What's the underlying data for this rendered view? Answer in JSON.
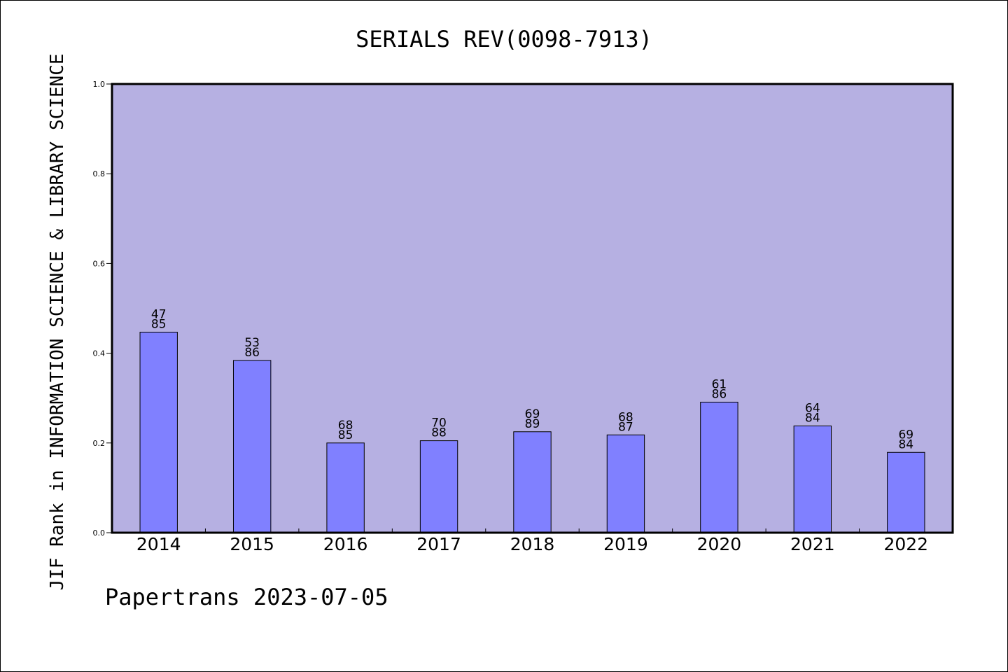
{
  "chart_data": {
    "type": "bar",
    "title": "SERIALS REV(0098-7913)",
    "ylabel": "JIF Rank in INFORMATION SCIENCE & LIBRARY SCIENCE",
    "xlabel": "",
    "ylim": [
      0,
      1.0
    ],
    "yticks": [
      "0.0",
      "0.2",
      "0.4",
      "0.6",
      "0.8",
      "1.0"
    ],
    "categories": [
      "2014",
      "2015",
      "2016",
      "2017",
      "2018",
      "2019",
      "2020",
      "2021",
      "2022"
    ],
    "values": [
      0.447,
      0.384,
      0.2,
      0.205,
      0.225,
      0.218,
      0.291,
      0.238,
      0.179
    ],
    "labels_top": [
      "47",
      "53",
      "68",
      "70",
      "69",
      "68",
      "61",
      "64",
      "69"
    ],
    "labels_bottom": [
      "85",
      "86",
      "85",
      "88",
      "89",
      "87",
      "86",
      "84",
      "84"
    ],
    "grid": false,
    "legend": "none",
    "colors": {
      "plot_background": "#b6b0e2",
      "bar_fill": "#8080ff",
      "bar_stroke": "#000000"
    }
  },
  "footer": {
    "text": "Papertrans 2023-07-05"
  }
}
